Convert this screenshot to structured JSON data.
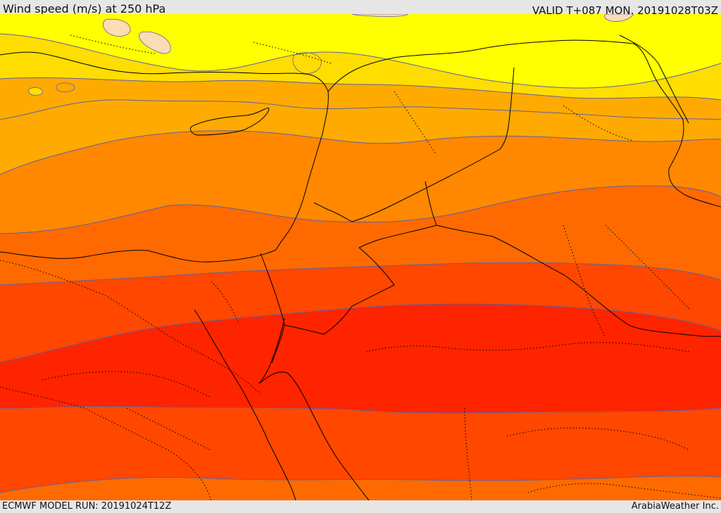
{
  "header": {
    "title": "Wind speed (m/s) at 250 hPa",
    "valid": "VALID T+087 MON. 20191028T03Z"
  },
  "footer": {
    "model_run": "ECMWF MODEL RUN: 20191024T12Z",
    "credit": "ArabiaWeather Inc."
  },
  "colors": {
    "band_peach": "#fcdcb4",
    "band_yellow": "#ffff00",
    "band_gold": "#ffdd00",
    "band_amber": "#ffaa00",
    "band_orange": "#ff8800",
    "band_dark_orange": "#ff6a00",
    "band_red_orange": "#ff4700",
    "band_red": "#ff2400",
    "contour": "#6060a0",
    "borders": "#000000"
  }
}
